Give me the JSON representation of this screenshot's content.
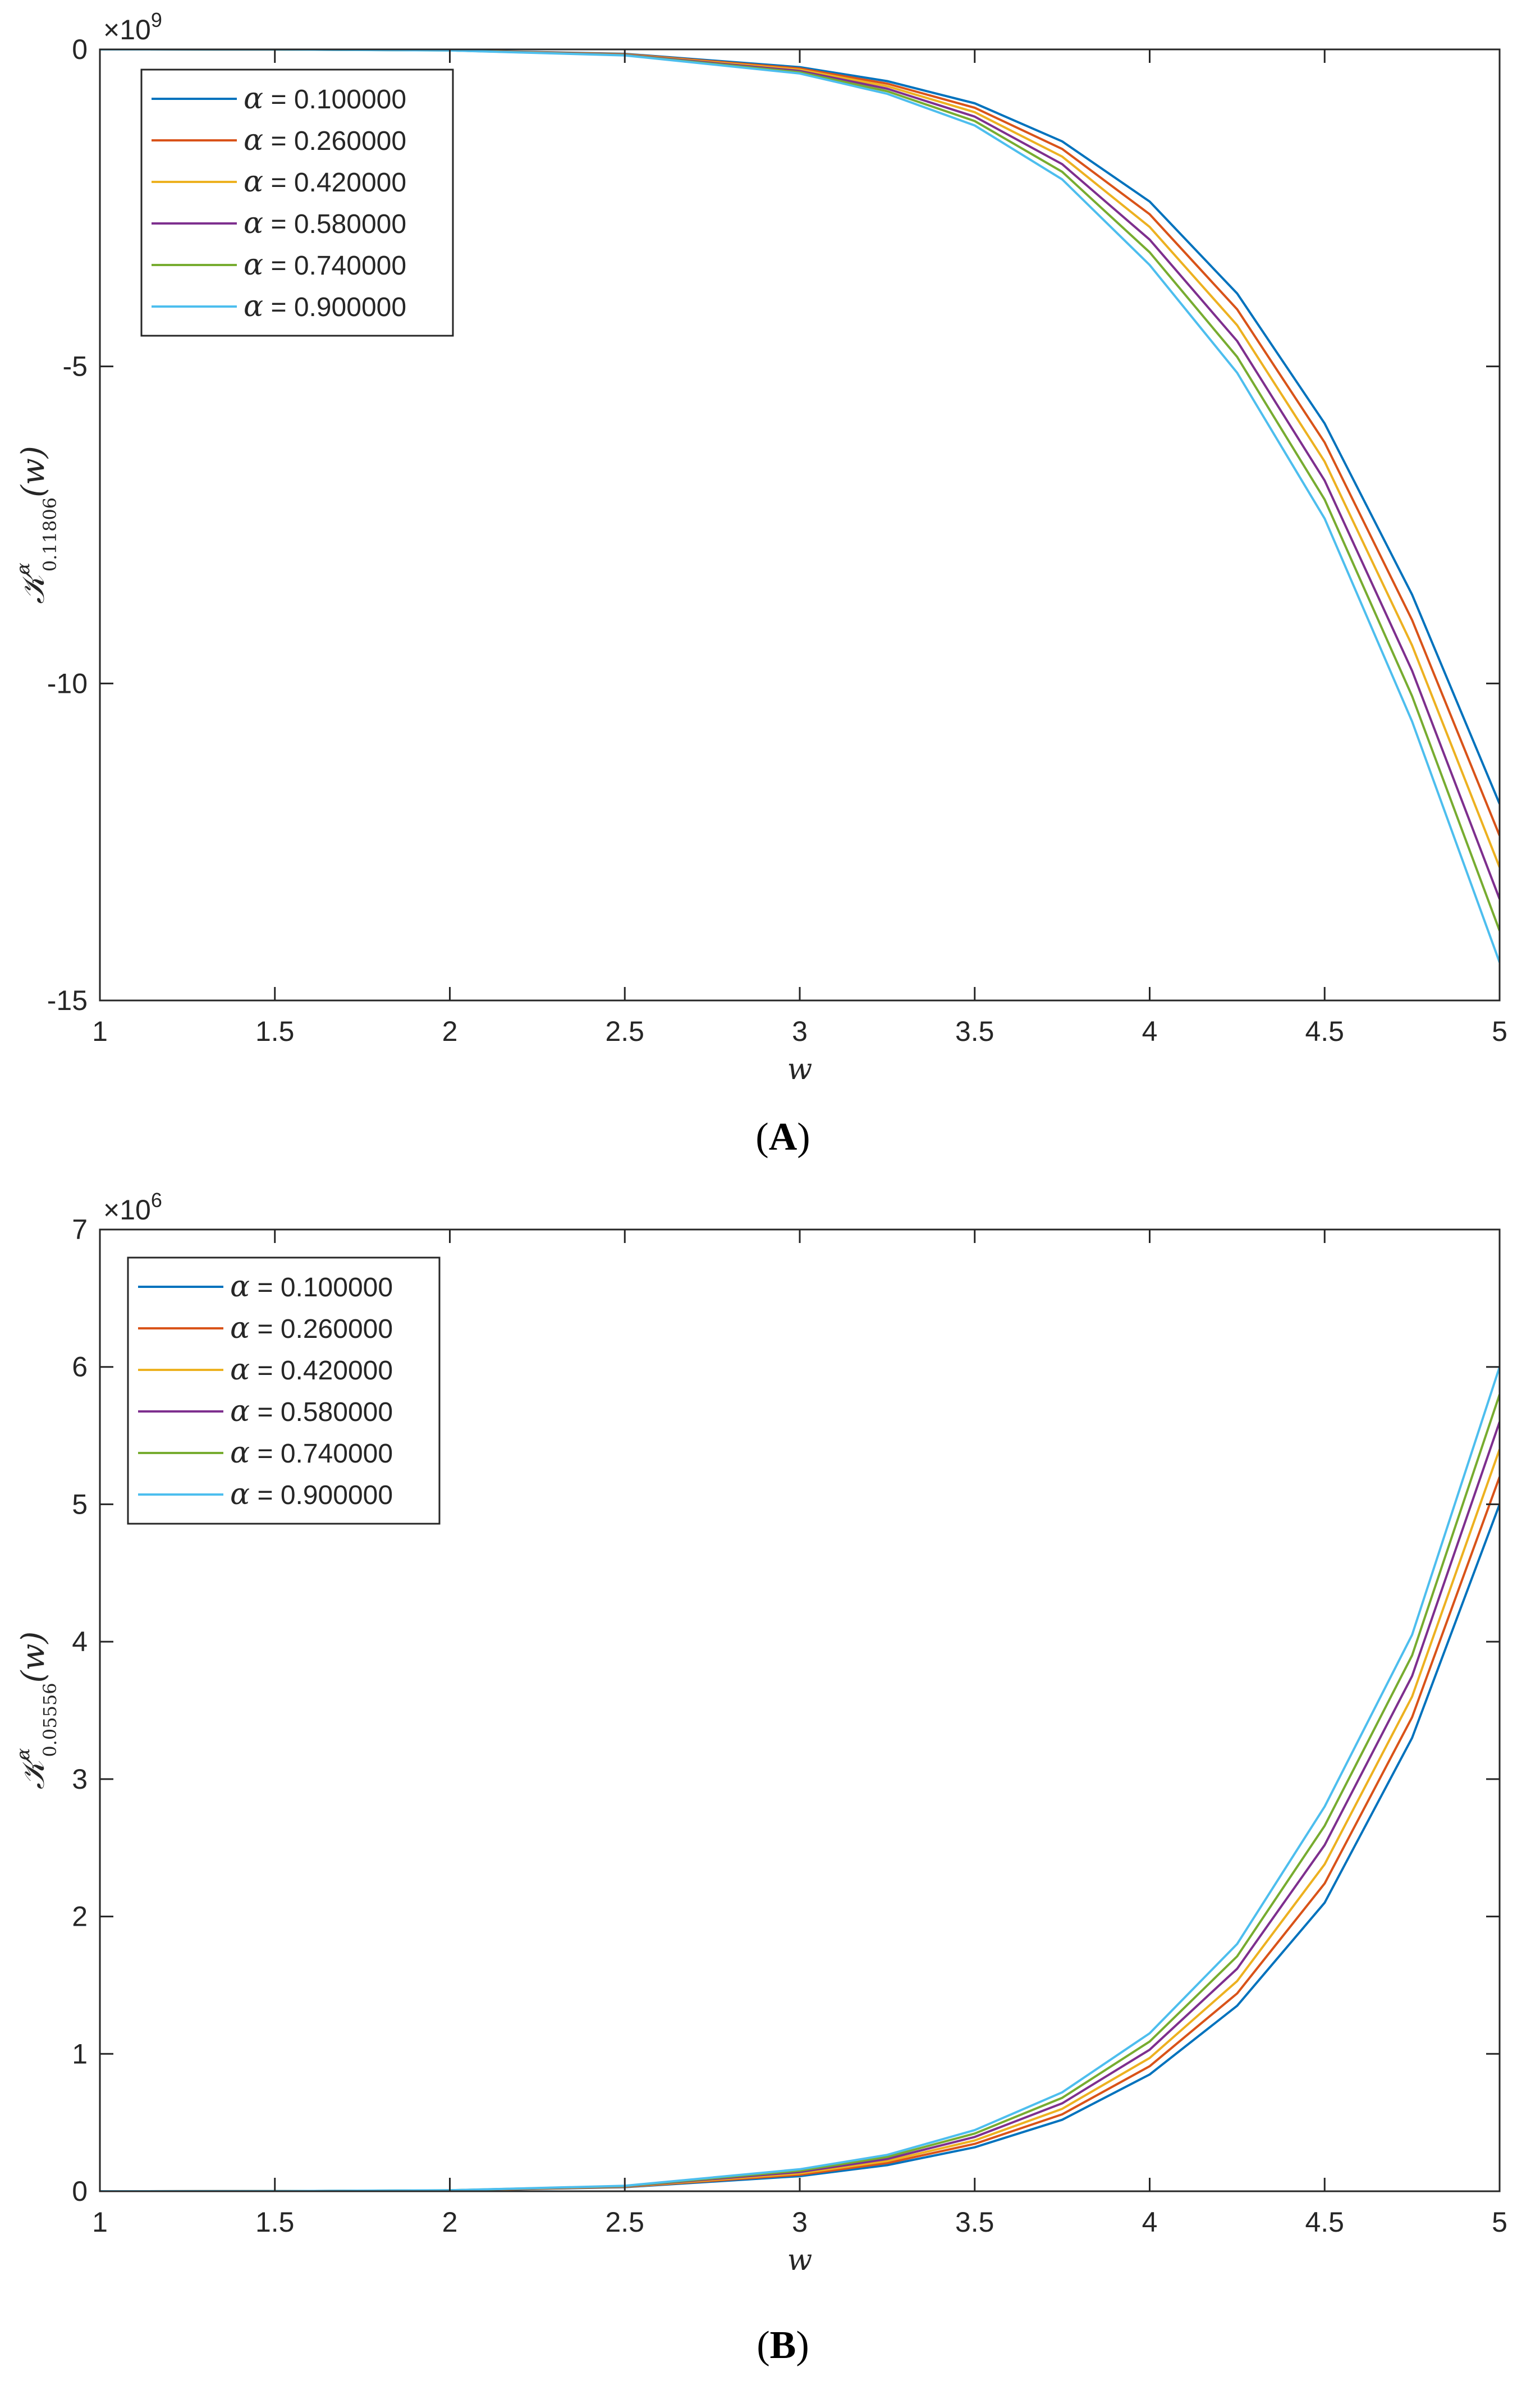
{
  "colors": [
    "#0072BD",
    "#D95319",
    "#EDB120",
    "#7E2F8E",
    "#77AC30",
    "#4DBEEE"
  ],
  "chart_data": [
    {
      "type": "line",
      "panel_label_open": "(",
      "panel_label_letter": "A",
      "panel_label_close": ")",
      "xlabel": "w",
      "ylabel_main": "𝒦",
      "ylabel_sup": "α",
      "ylabel_sub": "0.11806",
      "ylabel_arg": "(w)",
      "y_exponent_base": "×10",
      "y_exponent_power": "9",
      "xlim": [
        1,
        5
      ],
      "ylim": [
        -15,
        0
      ],
      "xticks": [
        1,
        1.5,
        2,
        2.5,
        3,
        3.5,
        4,
        4.5,
        5
      ],
      "xtick_labels": [
        "1",
        "1.5",
        "2",
        "2.5",
        "3",
        "3.5",
        "4",
        "4.5",
        "5"
      ],
      "yticks": [
        -15,
        -10,
        -5,
        0
      ],
      "ytick_labels": [
        "-15",
        "-10",
        "-5",
        "0"
      ],
      "grid": false,
      "legend_position": "top-left",
      "x": [
        1,
        1.5,
        2,
        2.5,
        3,
        3.25,
        3.5,
        3.75,
        4,
        4.25,
        4.5,
        4.75,
        5
      ],
      "series": [
        {
          "name_symbol": "α",
          "name_value": " = 0.100000",
          "values": [
            0,
            -0.0008,
            -0.012,
            -0.07,
            -0.28,
            -0.5,
            -0.85,
            -1.45,
            -2.4,
            -3.85,
            -5.9,
            -8.6,
            -11.9
          ]
        },
        {
          "name_symbol": "α",
          "name_value": " = 0.260000",
          "values": [
            0,
            -0.0009,
            -0.013,
            -0.075,
            -0.3,
            -0.54,
            -0.92,
            -1.57,
            -2.6,
            -4.1,
            -6.2,
            -9.0,
            -12.4
          ]
        },
        {
          "name_symbol": "α",
          "name_value": " = 0.420000",
          "values": [
            0,
            -0.001,
            -0.014,
            -0.08,
            -0.32,
            -0.58,
            -0.99,
            -1.69,
            -2.8,
            -4.35,
            -6.5,
            -9.4,
            -12.9
          ]
        },
        {
          "name_symbol": "α",
          "name_value": " = 0.580000",
          "values": [
            0,
            -0.0011,
            -0.015,
            -0.085,
            -0.34,
            -0.62,
            -1.06,
            -1.81,
            -3.0,
            -4.6,
            -6.8,
            -9.8,
            -13.4
          ]
        },
        {
          "name_symbol": "α",
          "name_value": " = 0.740000",
          "values": [
            0,
            -0.0012,
            -0.016,
            -0.09,
            -0.36,
            -0.66,
            -1.13,
            -1.93,
            -3.2,
            -4.85,
            -7.1,
            -10.2,
            -13.9
          ]
        },
        {
          "name_symbol": "α",
          "name_value": " = 0.900000",
          "values": [
            0,
            -0.0013,
            -0.017,
            -0.095,
            -0.38,
            -0.7,
            -1.2,
            -2.05,
            -3.4,
            -5.1,
            -7.4,
            -10.6,
            -14.4
          ]
        }
      ]
    },
    {
      "type": "line",
      "panel_label_open": "(",
      "panel_label_letter": "B",
      "panel_label_close": ")",
      "xlabel": "w",
      "ylabel_main": "𝒦",
      "ylabel_sup": "α",
      "ylabel_sub": "0.05556",
      "ylabel_arg": "(w)",
      "y_exponent_base": "×10",
      "y_exponent_power": "6",
      "xlim": [
        1,
        5
      ],
      "ylim": [
        0,
        7
      ],
      "xticks": [
        1,
        1.5,
        2,
        2.5,
        3,
        3.5,
        4,
        4.5,
        5
      ],
      "xtick_labels": [
        "1",
        "1.5",
        "2",
        "2.5",
        "3",
        "3.5",
        "4",
        "4.5",
        "5"
      ],
      "yticks": [
        0,
        1,
        2,
        3,
        4,
        5,
        6,
        7
      ],
      "ytick_labels": [
        "0",
        "1",
        "2",
        "3",
        "4",
        "5",
        "6",
        "7"
      ],
      "grid": false,
      "legend_position": "top-left",
      "x": [
        1,
        1.5,
        2,
        2.5,
        3,
        3.25,
        3.5,
        3.75,
        4,
        4.25,
        4.5,
        4.75,
        5
      ],
      "series": [
        {
          "name_symbol": "α",
          "name_value": " = 0.100000",
          "values": [
            0,
            0.0005,
            0.005,
            0.03,
            0.11,
            0.19,
            0.32,
            0.52,
            0.85,
            1.35,
            2.1,
            3.3,
            5.0
          ]
        },
        {
          "name_symbol": "α",
          "name_value": " = 0.260000",
          "values": [
            0,
            0.0006,
            0.0055,
            0.032,
            0.12,
            0.205,
            0.345,
            0.56,
            0.91,
            1.44,
            2.24,
            3.45,
            5.2
          ]
        },
        {
          "name_symbol": "α",
          "name_value": " = 0.420000",
          "values": [
            0,
            0.0007,
            0.006,
            0.034,
            0.13,
            0.22,
            0.37,
            0.6,
            0.97,
            1.53,
            2.38,
            3.6,
            5.4
          ]
        },
        {
          "name_symbol": "α",
          "name_value": " = 0.580000",
          "values": [
            0,
            0.0008,
            0.0065,
            0.036,
            0.14,
            0.235,
            0.395,
            0.64,
            1.03,
            1.62,
            2.52,
            3.75,
            5.6
          ]
        },
        {
          "name_symbol": "α",
          "name_value": " = 0.740000",
          "values": [
            0,
            0.0009,
            0.007,
            0.038,
            0.15,
            0.25,
            0.42,
            0.68,
            1.09,
            1.71,
            2.66,
            3.9,
            5.8
          ]
        },
        {
          "name_symbol": "α",
          "name_value": " = 0.900000",
          "values": [
            0,
            0.001,
            0.0075,
            0.04,
            0.16,
            0.265,
            0.445,
            0.72,
            1.15,
            1.8,
            2.8,
            4.05,
            6.0
          ]
        }
      ]
    }
  ]
}
